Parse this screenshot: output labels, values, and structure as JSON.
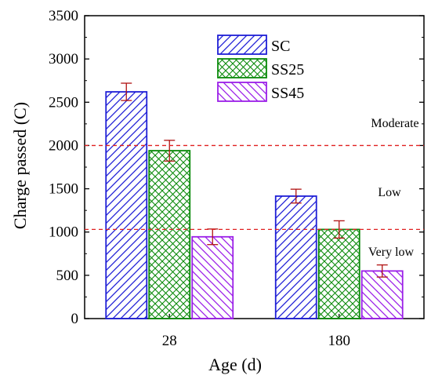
{
  "chart_data": {
    "type": "bar",
    "xlabel": "Age (d)",
    "ylabel": "Charge passed (C)",
    "ylim": [
      0,
      3500
    ],
    "yticks": [
      0,
      500,
      1000,
      1500,
      2000,
      2500,
      3000,
      3500
    ],
    "categories": [
      "28",
      "180"
    ],
    "series": [
      {
        "name": "SC",
        "values": [
          2620,
          1415
        ],
        "errors": [
          100,
          80
        ],
        "color": "#1f1fd6",
        "pattern": "diag-right"
      },
      {
        "name": "SS25",
        "values": [
          1940,
          1030
        ],
        "errors": [
          120,
          100
        ],
        "color": "#0a8a0a",
        "pattern": "cross"
      },
      {
        "name": "SS45",
        "values": [
          945,
          550
        ],
        "errors": [
          90,
          70
        ],
        "color": "#9b1fe8",
        "pattern": "diag-left"
      }
    ],
    "error_bar_color": "#b01212",
    "reference_lines": [
      {
        "value": 2000,
        "color": "#e02020"
      },
      {
        "value": 1030,
        "color": "#e02020"
      }
    ],
    "zone_labels": [
      "Moderate",
      "Low",
      "Very low"
    ],
    "legend_position": "top-center",
    "grid": false
  }
}
